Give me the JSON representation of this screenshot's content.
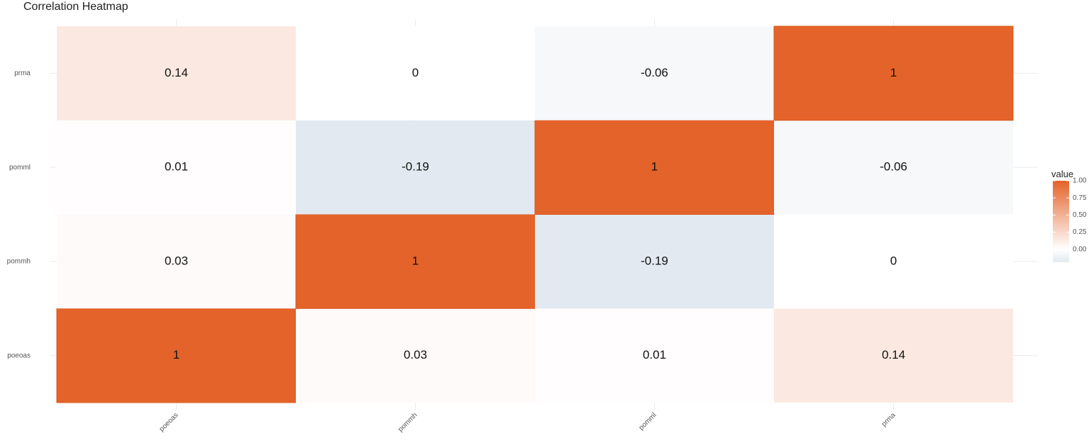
{
  "chart_data": {
    "type": "heatmap",
    "title": "Correlation Heatmap",
    "x_categories": [
      "poeoas",
      "pommh",
      "pomml",
      "prma"
    ],
    "y_categories": [
      "poeoas",
      "pommh",
      "pomml",
      "prma"
    ],
    "values": [
      [
        1,
        0.03,
        0.01,
        0.14
      ],
      [
        0.03,
        1,
        -0.19,
        0
      ],
      [
        0.01,
        -0.19,
        1,
        -0.06
      ],
      [
        0.14,
        0,
        -0.06,
        1
      ]
    ],
    "legend": {
      "title": "value",
      "ticks": [
        "1.00",
        "0.75",
        "0.50",
        "0.25",
        "0.00"
      ],
      "tick_values": [
        1,
        0.75,
        0.5,
        0.25,
        0
      ],
      "range": [
        -0.19,
        1
      ],
      "placement": "right"
    },
    "colors": {
      "high": "#E4632A",
      "mid": "#FFFFFF",
      "low": "#E2E9F0"
    },
    "grid": true
  }
}
